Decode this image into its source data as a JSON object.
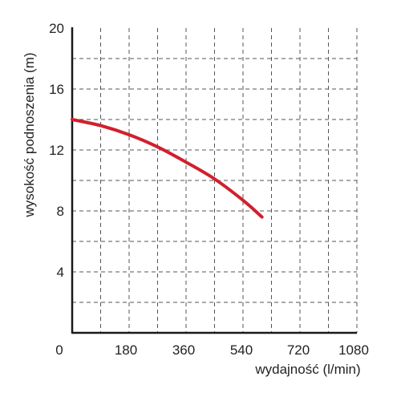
{
  "chart_data": {
    "type": "line",
    "title": "",
    "xlabel": "wydajność (l/min)",
    "ylabel": "wysokość podnoszenia (m)",
    "x_tick_labels": [
      "0",
      "180",
      "360",
      "540",
      "720",
      "1080"
    ],
    "y_ticks": [
      4,
      8,
      12,
      16,
      20
    ],
    "y_tick_labels": [
      "4",
      "8",
      "12",
      "16",
      "20"
    ],
    "x_origin_label": "0",
    "ylim": [
      0,
      20
    ],
    "grid": true,
    "legend": "none",
    "series": [
      {
        "x": [
          0,
          90,
          180,
          270,
          360,
          450,
          540,
          600
        ],
        "y": [
          14.0,
          13.6,
          13.0,
          12.2,
          11.2,
          10.1,
          8.7,
          7.6
        ]
      }
    ],
    "colors": {
      "line": "#d0202e",
      "axis": "#1a1a1a",
      "grid": "#555555"
    }
  }
}
